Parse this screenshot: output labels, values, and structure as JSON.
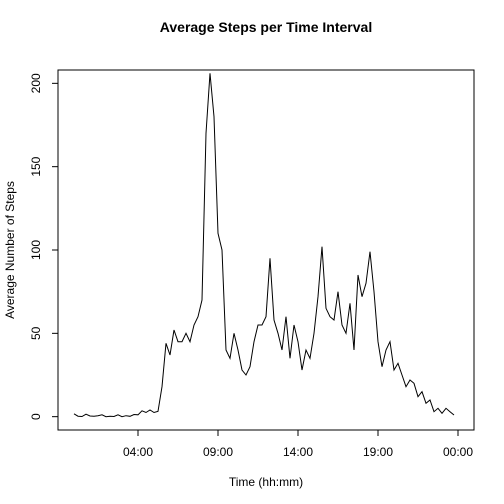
{
  "chart_data": {
    "type": "line",
    "title": "Average Steps per Time Interval",
    "x_label": "Time (hh:mm)",
    "y_label": "Average Number of Steps",
    "x": [
      0,
      0.25,
      0.5,
      0.75,
      1,
      1.25,
      1.5,
      1.75,
      2,
      2.25,
      2.5,
      2.75,
      3,
      3.25,
      3.5,
      3.75,
      4,
      4.25,
      4.5,
      4.75,
      5,
      5.25,
      5.5,
      5.75,
      6,
      6.25,
      6.5,
      6.75,
      7,
      7.25,
      7.5,
      7.75,
      8,
      8.25,
      8.5,
      8.75,
      9,
      9.25,
      9.5,
      9.75,
      10,
      10.25,
      10.5,
      10.75,
      11,
      11.25,
      11.5,
      11.75,
      12,
      12.25,
      12.5,
      12.75,
      13,
      13.25,
      13.5,
      13.75,
      14,
      14.25,
      14.5,
      14.75,
      15,
      15.25,
      15.5,
      15.75,
      16,
      16.25,
      16.5,
      16.75,
      17,
      17.25,
      17.5,
      17.75,
      18,
      18.25,
      18.5,
      18.75,
      19,
      19.25,
      19.5,
      19.75,
      20,
      20.25,
      20.5,
      20.75,
      21,
      21.25,
      21.5,
      21.75,
      22,
      22.25,
      22.5,
      22.75,
      23,
      23.25,
      23.5,
      23.75
    ],
    "series": [
      {
        "color": "#000000",
        "values": [
          1.7,
          0.3,
          0.1,
          1.5,
          0.4,
          0.2,
          0.6,
          1.1,
          0,
          0.3,
          0.1,
          1.1,
          0,
          0.6,
          0.2,
          1.3,
          1.1,
          3.5,
          2.5,
          4,
          2.5,
          3.2,
          18,
          44,
          37,
          52,
          45,
          45,
          50,
          45,
          55,
          60,
          70,
          170,
          206,
          180,
          110,
          100,
          40,
          35,
          50,
          40,
          28,
          25,
          30,
          45,
          55,
          55,
          60,
          95,
          58,
          50,
          40,
          60,
          35,
          55,
          45,
          28,
          40,
          35,
          50,
          72,
          102,
          65,
          60,
          58,
          75,
          55,
          50,
          68,
          40,
          85,
          72,
          80,
          99,
          75,
          45,
          30,
          40,
          45,
          28,
          32,
          25,
          18,
          22,
          20,
          12,
          15,
          8,
          10,
          3,
          5,
          2,
          5,
          3,
          1
        ]
      }
    ],
    "xlim": [
      -1,
      25
    ],
    "ylim": [
      -8,
      208
    ],
    "xticks": [
      {
        "value": 4,
        "label": "04:00"
      },
      {
        "value": 9,
        "label": "09:00"
      },
      {
        "value": 14,
        "label": "14:00"
      },
      {
        "value": 19,
        "label": "19:00"
      },
      {
        "value": 24,
        "label": "00:00"
      }
    ],
    "yticks": [
      0,
      50,
      100,
      150,
      200
    ]
  }
}
